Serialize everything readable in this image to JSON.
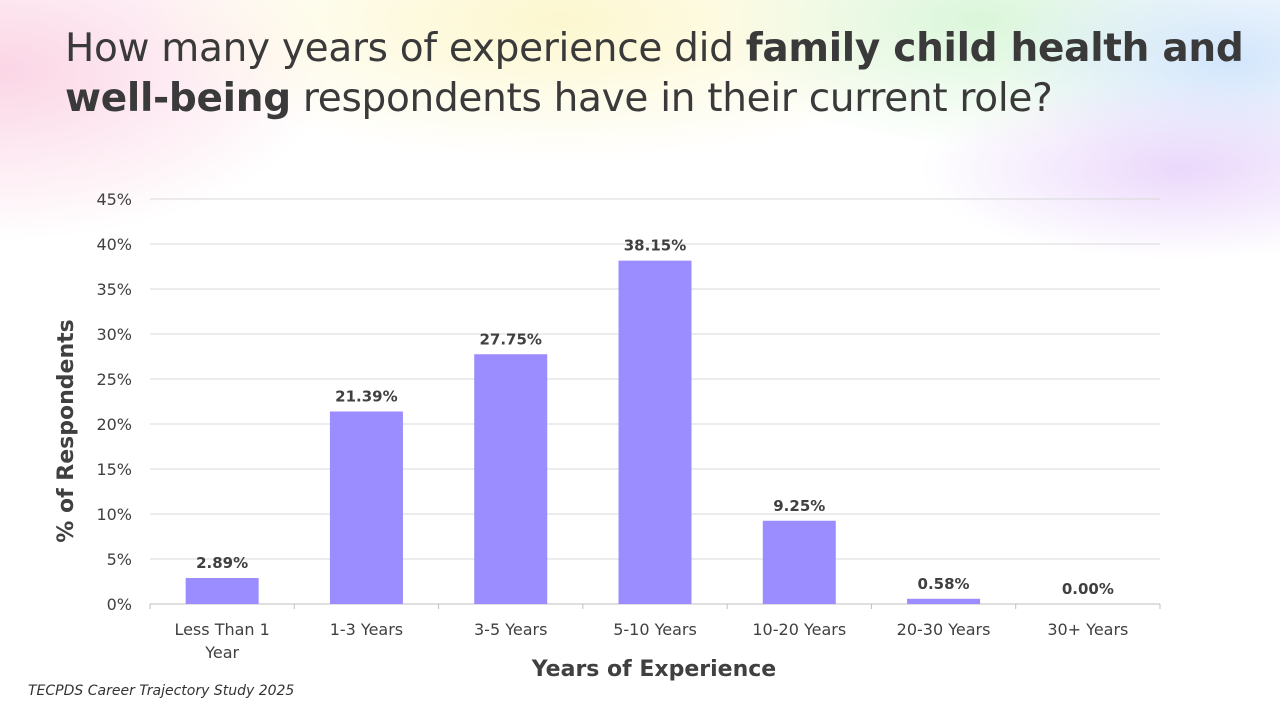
{
  "title": {
    "part1": "How many years of experience did ",
    "bold1": "family child health and well-being",
    "part2": " respondents have in their current role?"
  },
  "source": "TECPDS Career Trajectory Study 2025",
  "colors": {
    "bar": "#9b8cff",
    "grid": "#d9d9d9",
    "text": "#404040",
    "axis": "#bfbfbf"
  },
  "chart_data": {
    "type": "bar",
    "categories": [
      "Less Than 1 Year",
      "1-3 Years",
      "3-5 Years",
      "5-10 Years",
      "10-20 Years",
      "20-30 Years",
      "30+ Years"
    ],
    "category_lines": [
      [
        "Less Than 1",
        "Year"
      ],
      [
        "1-3 Years"
      ],
      [
        "3-5 Years"
      ],
      [
        "5-10 Years"
      ],
      [
        "10-20 Years"
      ],
      [
        "20-30 Years"
      ],
      [
        "30+ Years"
      ]
    ],
    "values": [
      2.89,
      21.39,
      27.75,
      38.15,
      9.25,
      0.58,
      0.0
    ],
    "data_labels": [
      "2.89%",
      "21.39%",
      "27.75%",
      "38.15%",
      "9.25%",
      "0.58%",
      "0.00%"
    ],
    "xlabel": "Years of Experience",
    "ylabel": "% of Respondents",
    "ylim": [
      0,
      45
    ],
    "yticks": [
      0,
      5,
      10,
      15,
      20,
      25,
      30,
      35,
      40,
      45
    ],
    "ytick_labels": [
      "0%",
      "5%",
      "10%",
      "15%",
      "20%",
      "25%",
      "30%",
      "35%",
      "40%",
      "45%"
    ],
    "grid": true,
    "legend": "none"
  }
}
